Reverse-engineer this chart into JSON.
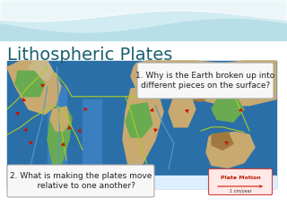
{
  "title": "Lithospheric Plates",
  "title_color": "#1a6070",
  "title_fontsize": 14,
  "bg_slide_color": "#ffffff",
  "question1": "1. Why is the Earth broken up into\ndifferent pieces on the surface?",
  "question2": "2. What is making the plates move\n    relative to one another?",
  "q1_fontsize": 6.5,
  "q2_fontsize": 6.5,
  "map_border_color": "#222222",
  "box_fill": "#f5f5f5",
  "box_edge": "#888888",
  "text_color": "#222222",
  "ocean_color": "#2a6fa8",
  "land_color": "#c8a96e",
  "mountain_color": "#a07840",
  "forest_color": "#5a9a4a",
  "ridge_color": "#3a8fcc",
  "plate_line_color": "#aacc22",
  "arrow_color": "#cc1100"
}
